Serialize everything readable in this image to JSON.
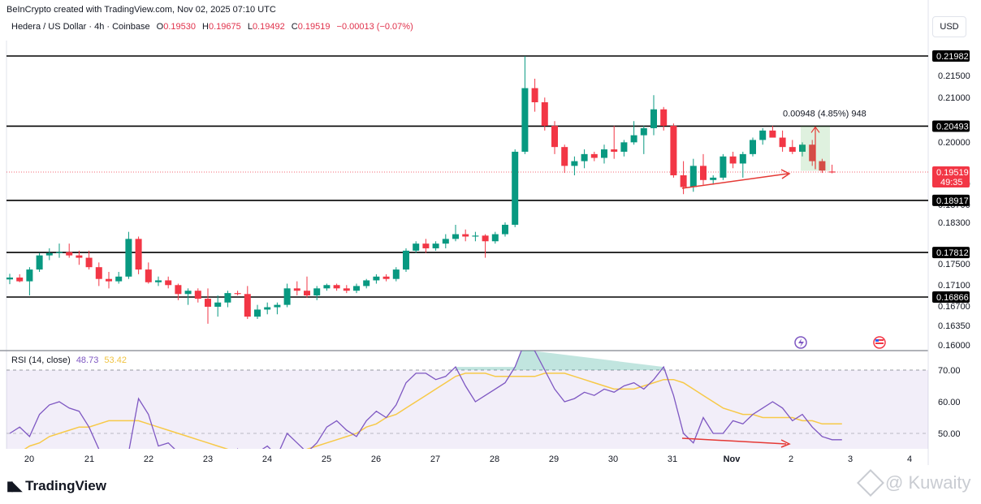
{
  "header": {
    "credit": "BeInCrypto created with TradingView.com, Nov 02, 2025 07:10 UTC",
    "symbol": "Hedera / US Dollar · 4h · Coinbase",
    "ohlc": {
      "o_label": "O",
      "o_value": "0.19530",
      "h_label": "H",
      "h_value": "0.19675",
      "l_label": "L",
      "l_value": "0.19492",
      "c_label": "C",
      "c_value": "0.19519",
      "change": "−0.00013 (−0.07%)"
    },
    "currency": "USD"
  },
  "colors": {
    "up": "#089981",
    "down": "#f23645",
    "rsi": "#7e57c2",
    "rsi_ma": "#f7c948",
    "support": "#000000",
    "arrow": "#e53935"
  },
  "icons": {
    "lightning": "lightning-icon",
    "flag": "us-flag-icon",
    "watermark": "diamond-logo-icon"
  },
  "chart_data": [
    {
      "type": "candlestick",
      "title": "",
      "x_ticks": [
        "20",
        "21",
        "22",
        "23",
        "24",
        "25",
        "26",
        "27",
        "28",
        "29",
        "30",
        "31",
        "Nov",
        "2",
        "3",
        "4"
      ],
      "y_ticks": [
        "0.21500",
        "0.21000",
        "0.20000",
        "0.19100",
        "0.18700",
        "0.18300",
        "0.17500",
        "0.17100",
        "0.16700",
        "0.16350",
        "0.16000"
      ],
      "y_range": [
        0.16,
        0.221
      ],
      "levels": [
        {
          "label": "0.21982",
          "value": 0.21982
        },
        {
          "label": "0.20493",
          "value": 0.20493
        },
        {
          "label": "0.18917",
          "value": 0.18917
        },
        {
          "label": "0.17812",
          "value": 0.17812
        },
        {
          "label": "0.16866",
          "value": 0.16866
        }
      ],
      "current_price": {
        "label": "0.19519",
        "value": 0.19519,
        "countdown": "49:35"
      },
      "measure": {
        "label": "0.00948 (4.85%) 948",
        "from": 0.19545,
        "to": 0.20493
      },
      "candles": [
        [
          0.1724,
          0.1736,
          0.1714,
          0.1728
        ],
        [
          0.1728,
          0.1735,
          0.1718,
          0.172
        ],
        [
          0.172,
          0.175,
          0.169,
          0.1745
        ],
        [
          0.1745,
          0.178,
          0.174,
          0.1775
        ],
        [
          0.1775,
          0.179,
          0.1765,
          0.178
        ],
        [
          0.178,
          0.18,
          0.177,
          0.1782
        ],
        [
          0.1782,
          0.18,
          0.177,
          0.1775
        ],
        [
          0.1775,
          0.1785,
          0.1755,
          0.177
        ],
        [
          0.177,
          0.1785,
          0.1745,
          0.175
        ],
        [
          0.175,
          0.176,
          0.171,
          0.1725
        ],
        [
          0.1725,
          0.174,
          0.1705,
          0.172
        ],
        [
          0.172,
          0.174,
          0.1715,
          0.173
        ],
        [
          0.173,
          0.1825,
          0.1725,
          0.181
        ],
        [
          0.181,
          0.1815,
          0.1735,
          0.1745
        ],
        [
          0.1745,
          0.176,
          0.1715,
          0.1718
        ],
        [
          0.1718,
          0.173,
          0.171,
          0.1722
        ],
        [
          0.1722,
          0.173,
          0.1705,
          0.1712
        ],
        [
          0.1712,
          0.1715,
          0.168,
          0.1693
        ],
        [
          0.1693,
          0.1705,
          0.167,
          0.17
        ],
        [
          0.17,
          0.1705,
          0.1675,
          0.1683
        ],
        [
          0.1683,
          0.1705,
          0.163,
          0.1666
        ],
        [
          0.1666,
          0.169,
          0.1645,
          0.1675
        ],
        [
          0.1675,
          0.17,
          0.1665,
          0.1695
        ],
        [
          0.1695,
          0.17,
          0.169,
          0.1693
        ],
        [
          0.1693,
          0.171,
          0.164,
          0.1645
        ],
        [
          0.1645,
          0.167,
          0.164,
          0.166
        ],
        [
          0.166,
          0.1675,
          0.165,
          0.1665
        ],
        [
          0.1665,
          0.1675,
          0.165,
          0.167
        ],
        [
          0.167,
          0.1715,
          0.1665,
          0.1705
        ],
        [
          0.1705,
          0.172,
          0.169,
          0.17
        ],
        [
          0.17,
          0.173,
          0.1685,
          0.169
        ],
        [
          0.169,
          0.171,
          0.168,
          0.1705
        ],
        [
          0.1705,
          0.1715,
          0.17,
          0.1712
        ],
        [
          0.1712,
          0.1715,
          0.17,
          0.1705
        ],
        [
          0.1705,
          0.1712,
          0.1695,
          0.17
        ],
        [
          0.17,
          0.1715,
          0.1695,
          0.171
        ],
        [
          0.171,
          0.1725,
          0.1705,
          0.1722
        ],
        [
          0.1722,
          0.1735,
          0.1715,
          0.173
        ],
        [
          0.173,
          0.1735,
          0.172,
          0.1725
        ],
        [
          0.1725,
          0.175,
          0.172,
          0.1745
        ],
        [
          0.1745,
          0.179,
          0.174,
          0.1785
        ],
        [
          0.1785,
          0.1805,
          0.178,
          0.18
        ],
        [
          0.18,
          0.181,
          0.178,
          0.179
        ],
        [
          0.179,
          0.1805,
          0.1785,
          0.18
        ],
        [
          0.18,
          0.182,
          0.179,
          0.181
        ],
        [
          0.181,
          0.184,
          0.1805,
          0.182
        ],
        [
          0.182,
          0.183,
          0.1805,
          0.1815
        ],
        [
          0.1815,
          0.1825,
          0.1805,
          0.1817
        ],
        [
          0.1817,
          0.182,
          0.177,
          0.1805
        ],
        [
          0.1805,
          0.1825,
          0.18,
          0.182
        ],
        [
          0.182,
          0.1845,
          0.1815,
          0.184
        ],
        [
          0.184,
          0.2,
          0.1835,
          0.1995
        ],
        [
          0.1995,
          0.2198,
          0.199,
          0.213
        ],
        [
          0.213,
          0.215,
          0.208,
          0.21
        ],
        [
          0.21,
          0.211,
          0.204,
          0.205
        ],
        [
          0.205,
          0.206,
          0.199,
          0.2005
        ],
        [
          0.2005,
          0.201,
          0.195,
          0.1965
        ],
        [
          0.1965,
          0.1985,
          0.1945,
          0.1975
        ],
        [
          0.1975,
          0.2,
          0.196,
          0.199
        ],
        [
          0.199,
          0.1995,
          0.1975,
          0.1982
        ],
        [
          0.1982,
          0.201,
          0.197,
          0.2
        ],
        [
          0.2,
          0.205,
          0.198,
          0.1995
        ],
        [
          0.1995,
          0.202,
          0.1985,
          0.2015
        ],
        [
          0.2015,
          0.206,
          0.201,
          0.203
        ],
        [
          0.203,
          0.205,
          0.199,
          0.2045
        ],
        [
          0.2045,
          0.2115,
          0.203,
          0.2085
        ],
        [
          0.2085,
          0.209,
          0.204,
          0.205
        ],
        [
          0.205,
          0.2055,
          0.194,
          0.1945
        ],
        [
          0.1945,
          0.1975,
          0.1905,
          0.192
        ],
        [
          0.192,
          0.198,
          0.191,
          0.1965
        ],
        [
          0.1965,
          0.199,
          0.1925,
          0.1935
        ],
        [
          0.1935,
          0.1945,
          0.1925,
          0.194
        ],
        [
          0.194,
          0.199,
          0.1935,
          0.1985
        ],
        [
          0.1985,
          0.1995,
          0.196,
          0.197
        ],
        [
          0.197,
          0.1995,
          0.194,
          0.199
        ],
        [
          0.199,
          0.2025,
          0.1985,
          0.202
        ],
        [
          0.202,
          0.2045,
          0.201,
          0.204
        ],
        [
          0.204,
          0.205,
          0.203,
          0.2025
        ],
        [
          0.2025,
          0.204,
          0.1995,
          0.2005
        ],
        [
          0.2005,
          0.202,
          0.199,
          0.1995
        ],
        [
          0.1995,
          0.2015,
          0.1985,
          0.201
        ],
        [
          0.201,
          0.202,
          0.1965,
          0.1975
        ],
        [
          0.1975,
          0.198,
          0.195,
          0.1955
        ],
        [
          0.1953,
          0.19675,
          0.19492,
          0.19519
        ]
      ]
    },
    {
      "type": "line",
      "title": "RSI (14, close)",
      "values_label": [
        "48.73",
        "53.42"
      ],
      "y_ticks": [
        "70.00",
        "60.00",
        "50.00"
      ],
      "band": [
        30,
        70
      ],
      "series": [
        {
          "name": "RSI",
          "values": [
            50,
            52,
            49,
            56,
            59,
            60,
            58,
            57,
            52,
            45,
            41,
            38,
            44,
            61,
            56,
            46,
            47,
            44,
            42,
            40,
            38,
            37,
            39,
            45,
            36,
            44,
            46,
            43,
            50,
            47,
            44,
            47,
            52,
            54,
            51,
            49,
            54,
            57,
            55,
            59,
            66,
            69,
            69,
            67,
            68,
            71,
            65,
            60,
            62,
            64,
            66,
            71,
            79,
            76,
            70,
            64,
            60,
            61,
            63,
            62,
            64,
            63,
            65,
            66,
            64,
            67,
            71,
            62,
            50,
            47,
            55,
            50,
            50,
            54,
            53,
            56,
            58,
            60,
            58,
            54,
            56,
            52,
            49,
            48,
            48
          ]
        },
        {
          "name": "RSI-based MA",
          "values": [
            42,
            44,
            46,
            47,
            49,
            50,
            51,
            52,
            52,
            53,
            54,
            54,
            54,
            54,
            53,
            52,
            51,
            50,
            49,
            48,
            47,
            46,
            45,
            44,
            43,
            43,
            43,
            43,
            44,
            44,
            45,
            46,
            47,
            48,
            49,
            50,
            52,
            53,
            55,
            56,
            58,
            60,
            62,
            64,
            66,
            68,
            69,
            69,
            69,
            68,
            68,
            68,
            68,
            68,
            69,
            69,
            69,
            68,
            67,
            66,
            65,
            64,
            64,
            64,
            65,
            66,
            67,
            67,
            66,
            64,
            62,
            60,
            58,
            57,
            56,
            56,
            55,
            55,
            55,
            55,
            54,
            54,
            53,
            53,
            53
          ]
        }
      ]
    }
  ],
  "rsi_panel": {
    "label": "RSI (14, close)",
    "value1": "48.73",
    "value2": "53.42"
  },
  "branding": {
    "logo_text": "TradingView",
    "watermark_text": "@ Kuwaity"
  }
}
